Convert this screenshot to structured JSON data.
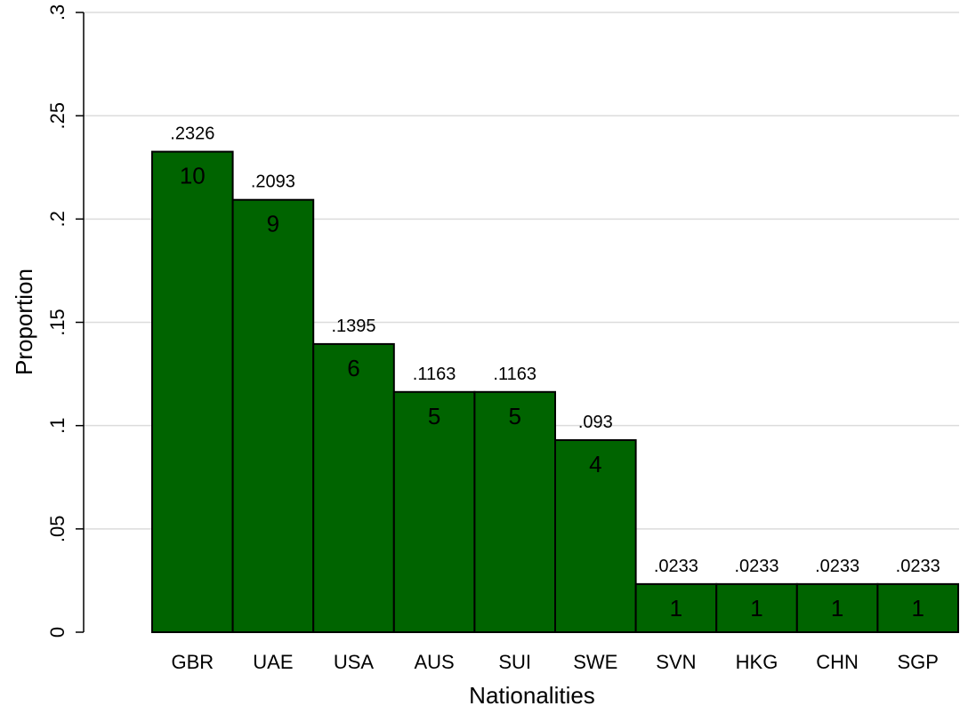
{
  "chart_data": {
    "type": "bar",
    "xlabel": "Nationalities",
    "ylabel": "Proportion",
    "ylim": [
      0,
      0.3
    ],
    "grid": true,
    "bar_color": "#006400",
    "bar_edge_color": "#000000",
    "categories": [
      "GBR",
      "UAE",
      "USA",
      "AUS",
      "SUI",
      "SWE",
      "SVN",
      "HKG",
      "CHN",
      "SGP"
    ],
    "values": [
      0.2326,
      0.2093,
      0.1395,
      0.1163,
      0.1163,
      0.093,
      0.0233,
      0.0233,
      0.0233,
      0.0233
    ],
    "value_labels": [
      ".2326",
      ".2093",
      ".1395",
      ".1163",
      ".1163",
      ".093",
      ".0233",
      ".0233",
      ".0233",
      ".0233"
    ],
    "counts": [
      "10",
      "9",
      "6",
      "5",
      "5",
      "4",
      "1",
      "1",
      "1",
      "1"
    ],
    "yticks": [
      0,
      0.05,
      0.1,
      0.15,
      0.2,
      0.25,
      0.3
    ],
    "ytick_labels": [
      "0",
      ".05",
      ".1",
      ".15",
      ".2",
      ".25",
      ".3"
    ]
  }
}
